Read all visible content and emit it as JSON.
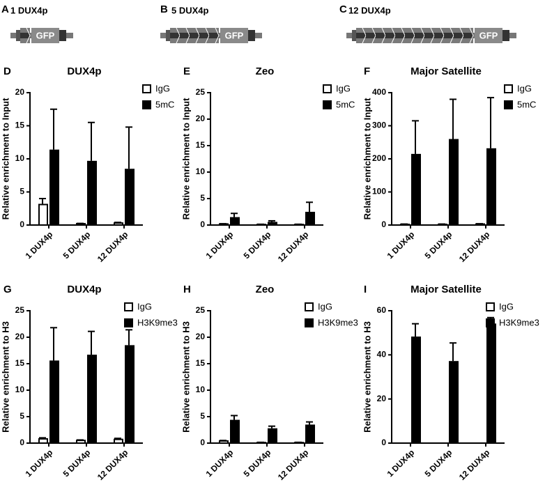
{
  "constructs": [
    {
      "letter": "A",
      "label": "1 DUX4p",
      "gfp": "GFP"
    },
    {
      "letter": "B",
      "label": "5 DUX4p",
      "gfp": "GFP"
    },
    {
      "letter": "C",
      "label": "12 DUX4p",
      "gfp": "GFP"
    }
  ],
  "chart_data": [
    {
      "type": "bar",
      "panel": "D",
      "title": "DUX4p",
      "ylabel": "Relative enrichment to Input",
      "categories": [
        "1 DUX4p",
        "5 DUX4p",
        "12 DUX4p"
      ],
      "series": [
        {
          "name": "IgG",
          "color": "#ffffff",
          "values": [
            3.1,
            0.2,
            0.3
          ],
          "errors": [
            0.9,
            0.05,
            0.1
          ]
        },
        {
          "name": "5mC",
          "color": "#000000",
          "values": [
            11.4,
            9.7,
            8.5
          ],
          "errors": [
            6.1,
            5.8,
            6.3
          ]
        }
      ],
      "ylim": [
        0,
        20
      ],
      "yticks": [
        0,
        5,
        10,
        15,
        20
      ]
    },
    {
      "type": "bar",
      "panel": "E",
      "title": "Zeo",
      "ylabel": "Relative enrichment to Input",
      "categories": [
        "1 DUX4p",
        "5 DUX4p",
        "12 DUX4p"
      ],
      "series": [
        {
          "name": "IgG",
          "color": "#ffffff",
          "values": [
            0.2,
            0.1,
            0.1
          ],
          "errors": [
            0.05,
            0.05,
            0.05
          ]
        },
        {
          "name": "5mC",
          "color": "#000000",
          "values": [
            1.5,
            0.6,
            2.5
          ],
          "errors": [
            0.7,
            0.2,
            1.8
          ]
        }
      ],
      "ylim": [
        0,
        25
      ],
      "yticks": [
        0,
        5,
        10,
        15,
        20,
        25
      ]
    },
    {
      "type": "bar",
      "panel": "F",
      "title": "Major Satellite",
      "ylabel": "Relative enrichment to Input",
      "categories": [
        "1 DUX4p",
        "5 DUX4p",
        "12 DUX4p"
      ],
      "series": [
        {
          "name": "IgG",
          "color": "#ffffff",
          "values": [
            2,
            2,
            3
          ],
          "errors": [
            1,
            1,
            1
          ]
        },
        {
          "name": "5mC",
          "color": "#000000",
          "values": [
            215,
            260,
            232
          ],
          "errors": [
            100,
            120,
            153
          ]
        }
      ],
      "ylim": [
        0,
        400
      ],
      "yticks": [
        0,
        100,
        200,
        300,
        400
      ]
    },
    {
      "type": "bar",
      "panel": "G",
      "title": "DUX4p",
      "ylabel": "Relative enrichment to H3",
      "categories": [
        "1 DUX4p",
        "5 DUX4p",
        "12 DUX4p"
      ],
      "series": [
        {
          "name": "IgG",
          "color": "#ffffff",
          "values": [
            0.8,
            0.5,
            0.7
          ],
          "errors": [
            0.2,
            0.1,
            0.2
          ]
        },
        {
          "name": "H3K9me3",
          "color": "#000000",
          "values": [
            15.6,
            16.7,
            18.5
          ],
          "errors": [
            6.2,
            4.4,
            2.9
          ]
        }
      ],
      "ylim": [
        0,
        25
      ],
      "yticks": [
        0,
        5,
        10,
        15,
        20,
        25
      ]
    },
    {
      "type": "bar",
      "panel": "H",
      "title": "Zeo",
      "ylabel": "Relative enrichment to H3",
      "categories": [
        "1 DUX4p",
        "5 DUX4p",
        "12 DUX4p"
      ],
      "series": [
        {
          "name": "IgG",
          "color": "#ffffff",
          "values": [
            0.4,
            0.1,
            0.1
          ],
          "errors": [
            0.1,
            0.05,
            0.05
          ]
        },
        {
          "name": "H3K9me3",
          "color": "#000000",
          "values": [
            4.4,
            2.8,
            3.5
          ],
          "errors": [
            0.8,
            0.4,
            0.5
          ]
        }
      ],
      "ylim": [
        0,
        25
      ],
      "yticks": [
        0,
        5,
        10,
        15,
        20,
        25
      ]
    },
    {
      "type": "bar",
      "panel": "I",
      "title": "Major Satellite",
      "ylabel": "Relative enrichment to H3",
      "categories": [
        "1 DUX4p",
        "5 DUX4p",
        "12 DUX4p"
      ],
      "series": [
        {
          "name": "IgG",
          "color": "#ffffff",
          "values": [
            0,
            0,
            0
          ],
          "errors": [
            0,
            0,
            0
          ]
        },
        {
          "name": "H3K9me3",
          "color": "#000000",
          "values": [
            48.3,
            37.2,
            54.2
          ],
          "errors": [
            5.8,
            8.2,
            2.7
          ]
        }
      ],
      "ylim": [
        0,
        60
      ],
      "yticks": [
        0,
        20,
        40,
        60
      ]
    }
  ]
}
